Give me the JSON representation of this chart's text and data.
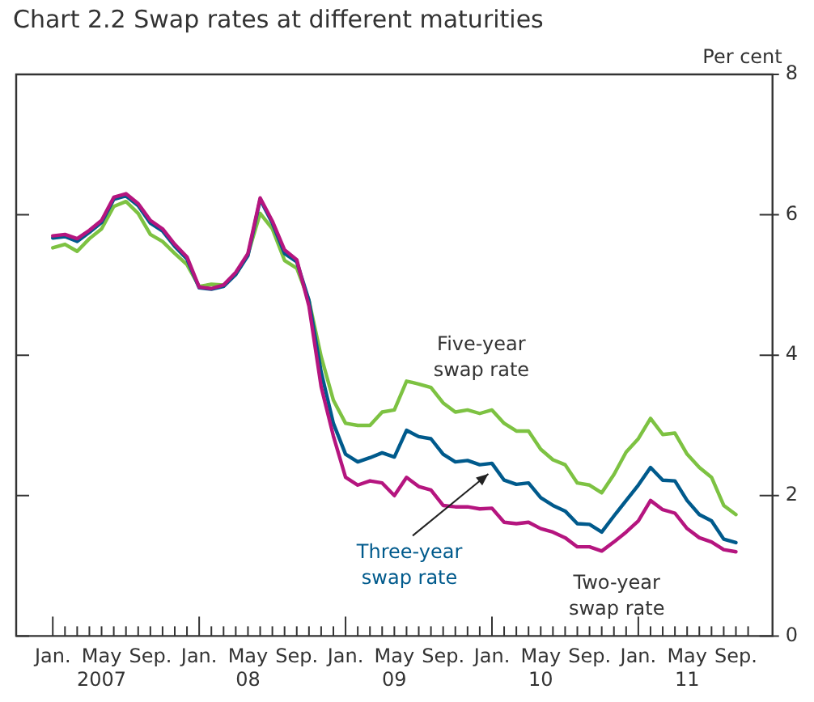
{
  "chart_data": {
    "type": "line",
    "title": "Chart 2.2 Swap rates at different maturities",
    "ylabel": "Per cent",
    "x": [
      "2007-01",
      "2007-02",
      "2007-03",
      "2007-04",
      "2007-05",
      "2007-06",
      "2007-07",
      "2007-08",
      "2007-09",
      "2007-10",
      "2007-11",
      "2007-12",
      "2008-01",
      "2008-02",
      "2008-03",
      "2008-04",
      "2008-05",
      "2008-06",
      "2008-07",
      "2008-08",
      "2008-09",
      "2008-10",
      "2008-11",
      "2008-12",
      "2009-01",
      "2009-02",
      "2009-03",
      "2009-04",
      "2009-05",
      "2009-06",
      "2009-07",
      "2009-08",
      "2009-09",
      "2009-10",
      "2009-11",
      "2009-12",
      "2010-01",
      "2010-02",
      "2010-03",
      "2010-04",
      "2010-05",
      "2010-06",
      "2010-07",
      "2010-08",
      "2010-09",
      "2010-10",
      "2010-11",
      "2010-12",
      "2011-01",
      "2011-02",
      "2011-03",
      "2011-04",
      "2011-05",
      "2011-06",
      "2011-07",
      "2011-08",
      "2011-09"
    ],
    "series": [
      {
        "name": "Two-year swap rate",
        "color": "#b5157f",
        "values": [
          5.7,
          5.72,
          5.66,
          5.78,
          5.92,
          6.25,
          6.3,
          6.16,
          5.92,
          5.8,
          5.58,
          5.4,
          4.97,
          4.95,
          5.0,
          5.18,
          5.45,
          6.24,
          5.91,
          5.5,
          5.36,
          4.7,
          3.55,
          2.85,
          2.26,
          2.15,
          2.21,
          2.18,
          2.0,
          2.26,
          2.13,
          2.08,
          1.86,
          1.84,
          1.84,
          1.81,
          1.82,
          1.62,
          1.6,
          1.62,
          1.53,
          1.48,
          1.4,
          1.27,
          1.27,
          1.21,
          1.34,
          1.48,
          1.64,
          1.93,
          1.8,
          1.75,
          1.53,
          1.4,
          1.34,
          1.23,
          1.2
        ]
      },
      {
        "name": "Three-year swap rate",
        "color": "#005a8c",
        "values": [
          5.67,
          5.69,
          5.62,
          5.75,
          5.89,
          6.22,
          6.27,
          6.13,
          5.88,
          5.77,
          5.55,
          5.37,
          4.96,
          4.94,
          4.98,
          5.15,
          5.42,
          6.22,
          5.88,
          5.45,
          5.33,
          4.78,
          3.76,
          3.03,
          2.59,
          2.48,
          2.54,
          2.61,
          2.55,
          2.93,
          2.84,
          2.81,
          2.59,
          2.48,
          2.5,
          2.44,
          2.46,
          2.22,
          2.16,
          2.18,
          1.97,
          1.86,
          1.78,
          1.6,
          1.59,
          1.48,
          1.71,
          1.93,
          2.15,
          2.4,
          2.22,
          2.21,
          1.93,
          1.73,
          1.64,
          1.38,
          1.33
        ]
      },
      {
        "name": "Five-year swap rate",
        "color": "#7dc242",
        "values": [
          5.53,
          5.58,
          5.48,
          5.66,
          5.8,
          6.12,
          6.19,
          6.02,
          5.72,
          5.62,
          5.45,
          5.29,
          4.98,
          5.01,
          5.0,
          5.15,
          5.44,
          6.02,
          5.8,
          5.35,
          5.24,
          4.78,
          3.98,
          3.36,
          3.03,
          3.0,
          3.0,
          3.19,
          3.22,
          3.63,
          3.59,
          3.54,
          3.32,
          3.19,
          3.22,
          3.17,
          3.22,
          3.03,
          2.92,
          2.92,
          2.66,
          2.51,
          2.44,
          2.18,
          2.15,
          2.04,
          2.3,
          2.62,
          2.81,
          3.1,
          2.87,
          2.89,
          2.59,
          2.4,
          2.26,
          1.86,
          1.73
        ]
      }
    ],
    "xlim": [
      "2006-10",
      "2011-12"
    ],
    "xticks": [
      {
        "value": "2007-01",
        "label": "Jan."
      },
      {
        "value": "2007-02",
        "label": null
      },
      {
        "value": "2007-03",
        "label": null
      },
      {
        "value": "2007-04",
        "label": null
      },
      {
        "value": "2007-05",
        "label": "May\n2007"
      },
      {
        "value": "2007-06",
        "label": null
      },
      {
        "value": "2007-07",
        "label": null
      },
      {
        "value": "2007-08",
        "label": null
      },
      {
        "value": "2007-09",
        "label": "Sep."
      },
      {
        "value": "2007-10",
        "label": null
      },
      {
        "value": "2007-11",
        "label": null
      },
      {
        "value": "2007-12",
        "label": null
      },
      {
        "value": "2008-01",
        "label": "Jan."
      },
      {
        "value": "2008-02",
        "label": null
      },
      {
        "value": "2008-03",
        "label": null
      },
      {
        "value": "2008-04",
        "label": null
      },
      {
        "value": "2008-05",
        "label": "May\n08"
      },
      {
        "value": "2008-06",
        "label": null
      },
      {
        "value": "2008-07",
        "label": null
      },
      {
        "value": "2008-08",
        "label": null
      },
      {
        "value": "2008-09",
        "label": "Sep."
      },
      {
        "value": "2008-10",
        "label": null
      },
      {
        "value": "2008-11",
        "label": null
      },
      {
        "value": "2008-12",
        "label": null
      },
      {
        "value": "2009-01",
        "label": "Jan."
      },
      {
        "value": "2009-02",
        "label": null
      },
      {
        "value": "2009-03",
        "label": null
      },
      {
        "value": "2009-04",
        "label": null
      },
      {
        "value": "2009-05",
        "label": "May\n09"
      },
      {
        "value": "2009-06",
        "label": null
      },
      {
        "value": "2009-07",
        "label": null
      },
      {
        "value": "2009-08",
        "label": null
      },
      {
        "value": "2009-09",
        "label": "Sep."
      },
      {
        "value": "2009-10",
        "label": null
      },
      {
        "value": "2009-11",
        "label": null
      },
      {
        "value": "2009-12",
        "label": null
      },
      {
        "value": "2010-01",
        "label": "Jan."
      },
      {
        "value": "2010-02",
        "label": null
      },
      {
        "value": "2010-03",
        "label": null
      },
      {
        "value": "2010-04",
        "label": null
      },
      {
        "value": "2010-05",
        "label": "May\n10"
      },
      {
        "value": "2010-06",
        "label": null
      },
      {
        "value": "2010-07",
        "label": null
      },
      {
        "value": "2010-08",
        "label": null
      },
      {
        "value": "2010-09",
        "label": "Sep."
      },
      {
        "value": "2010-10",
        "label": null
      },
      {
        "value": "2010-11",
        "label": null
      },
      {
        "value": "2010-12",
        "label": null
      },
      {
        "value": "2011-01",
        "label": "Jan."
      },
      {
        "value": "2011-02",
        "label": null
      },
      {
        "value": "2011-03",
        "label": null
      },
      {
        "value": "2011-04",
        "label": null
      },
      {
        "value": "2011-05",
        "label": "May\n11"
      },
      {
        "value": "2011-06",
        "label": null
      },
      {
        "value": "2011-07",
        "label": null
      },
      {
        "value": "2011-08",
        "label": null
      },
      {
        "value": "2011-09",
        "label": "Sep."
      },
      {
        "value": "2011-10",
        "label": null
      }
    ],
    "ylim": [
      0,
      8
    ],
    "yticks": [
      0,
      2,
      4,
      6,
      8
    ],
    "grid": false,
    "legend": false,
    "marker": "none",
    "line_style": "solid"
  }
}
